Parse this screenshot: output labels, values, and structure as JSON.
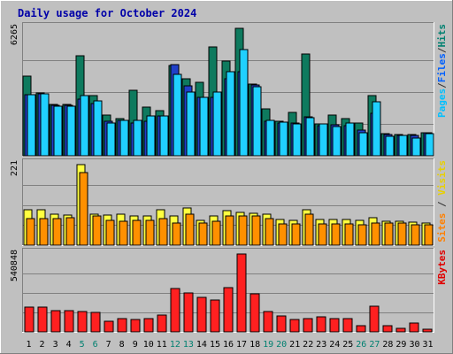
{
  "chart_data": {
    "type": "bar",
    "title": "Daily usage for October 2024",
    "categories": [
      "1",
      "2",
      "3",
      "4",
      "5",
      "6",
      "7",
      "8",
      "9",
      "10",
      "11",
      "12",
      "13",
      "14",
      "15",
      "16",
      "17",
      "18",
      "19",
      "20",
      "21",
      "22",
      "23",
      "24",
      "25",
      "26",
      "27",
      "28",
      "29",
      "30",
      "31"
    ],
    "weekend_categories": [
      "5",
      "6",
      "12",
      "13",
      "19",
      "20",
      "26",
      "27"
    ],
    "panels": [
      {
        "id": "hits",
        "ymax": 6265,
        "ymax_label": "6265",
        "side_labels": [
          {
            "text": "Pages",
            "color": "#00c0ff"
          },
          {
            "text": "/",
            "color": "#303030"
          },
          {
            "text": "Files",
            "color": "#0060ff"
          },
          {
            "text": "/",
            "color": "#303030"
          },
          {
            "text": "Hits",
            "color": "#008070"
          }
        ],
        "series": [
          {
            "name": "Hits",
            "color": "#0e7a5e",
            "values": [
              3915,
              3090,
              2525,
              2520,
              4900,
              2955,
              2004,
              1819,
              3206,
              2405,
              2205,
              4430,
              3795,
              3590,
              5350,
              4650,
              6265,
              3540,
              2305,
              1700,
              2145,
              5020,
              1550,
              1980,
              1845,
              1617,
              2971,
              1095,
              1050,
              1045,
              1145
            ]
          },
          {
            "name": "Files",
            "color": "#2040c8",
            "values": [
              3000,
              3045,
              2480,
              2470,
              2800,
              2570,
              1680,
              1760,
              1620,
              1690,
              1950,
              4470,
              3450,
              2850,
              2850,
              3800,
              4150,
              3480,
              1700,
              1630,
              1590,
              1895,
              1494,
              1535,
              1464,
              1272,
              2100,
              1034,
              1003,
              1003,
              1124
            ]
          },
          {
            "name": "Pages",
            "color": "#20d0ff",
            "values": [
              3000,
              3050,
              2450,
              2450,
              2950,
              2700,
              1620,
              1740,
              1720,
              1960,
              1970,
              4010,
              3150,
              2850,
              3150,
              4150,
              5220,
              3410,
              1740,
              1660,
              1570,
              1880,
              1550,
              1430,
              1630,
              1140,
              2650,
              940,
              990,
              880,
              1100
            ]
          }
        ]
      },
      {
        "id": "visits",
        "ymax": 221,
        "ymax_label": "221",
        "side_labels": [
          {
            "text": "Sites",
            "color": "#ff8000"
          },
          {
            "text": " / ",
            "color": "#303030"
          },
          {
            "text": "Visits",
            "color": "#e8d000"
          }
        ],
        "series": [
          {
            "name": "Visits",
            "color": "#ffff40",
            "values": [
              96,
              98,
              85,
              82,
              221,
              84,
              82,
              84,
              80,
              80,
              98,
              80,
              102,
              67,
              81,
              95,
              91,
              88,
              85,
              70,
              69,
              96,
              70,
              71,
              70,
              67,
              75,
              65,
              65,
              63,
              61
            ]
          },
          {
            "name": "Sites",
            "color": "#ff9000",
            "values": [
              72,
              74,
              74,
              76,
              200,
              80,
              67,
              66,
              68,
              68,
              74,
              60,
              86,
              61,
              66,
              79,
              79,
              80,
              72,
              59,
              59,
              85,
              58,
              58,
              58,
              55,
              61,
              61,
              60,
              55,
              55
            ]
          }
        ]
      },
      {
        "id": "kbytes",
        "ymax": 540848,
        "ymax_label": "540848",
        "side_labels": [
          {
            "text": "KBytes",
            "color": "#e00000"
          }
        ],
        "series": [
          {
            "name": "KBytes",
            "color": "#ff2020",
            "values": [
              170000,
              175000,
              150000,
              145000,
              140000,
              135000,
              75000,
              95000,
              85000,
              95000,
              115000,
              300000,
              270000,
              240000,
              220000,
              310000,
              540848,
              265000,
              140000,
              110000,
              85000,
              90000,
              105000,
              90000,
              95000,
              40000,
              180000,
              45000,
              25000,
              60000,
              20000
            ]
          }
        ]
      }
    ]
  }
}
